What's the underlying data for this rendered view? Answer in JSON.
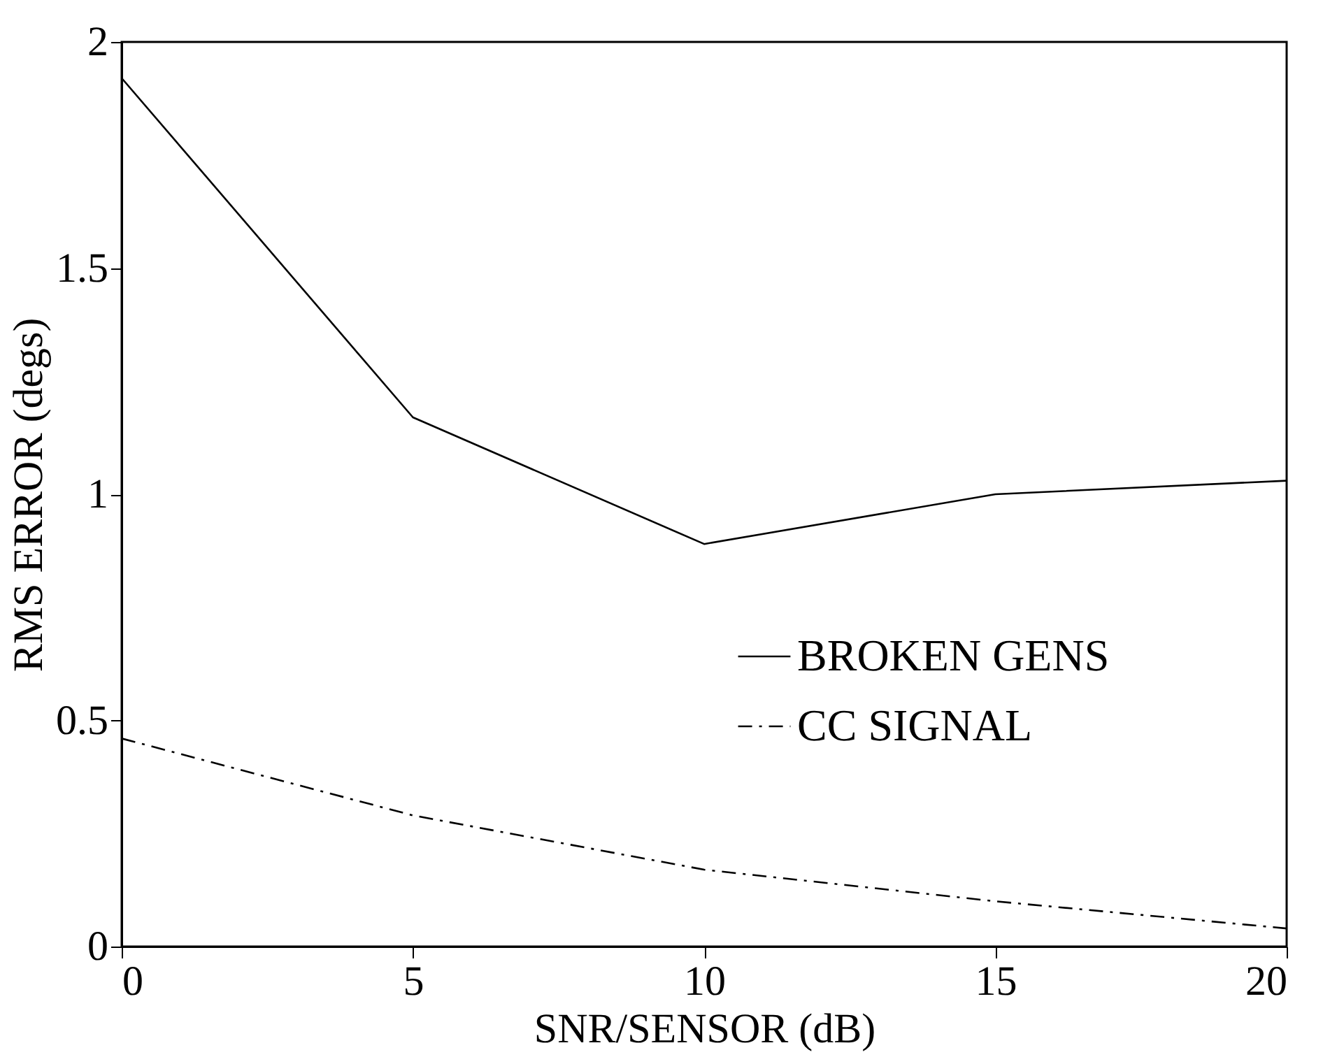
{
  "chart_data": {
    "type": "line",
    "xlabel": "SNR/SENSOR (dB)",
    "ylabel": "RMS ERROR (degs)",
    "x": [
      0,
      5,
      10,
      15,
      20
    ],
    "series": [
      {
        "name": "BROKEN GENS",
        "color": "#000000",
        "line_style": "solid",
        "values": [
          1.92,
          1.17,
          0.89,
          1.0,
          1.03
        ]
      },
      {
        "name": "CC SIGNAL",
        "color": "#000000",
        "line_style": "dashdot",
        "values": [
          0.46,
          0.29,
          0.17,
          0.1,
          0.04
        ]
      }
    ],
    "xlim": [
      0,
      20
    ],
    "xticks": [
      0,
      5,
      10,
      15,
      20
    ],
    "ylim": [
      0,
      2
    ],
    "yticks": [
      0,
      0.5,
      1,
      1.5,
      2
    ],
    "grid": false,
    "legend": "bottom right",
    "marker": "none"
  }
}
